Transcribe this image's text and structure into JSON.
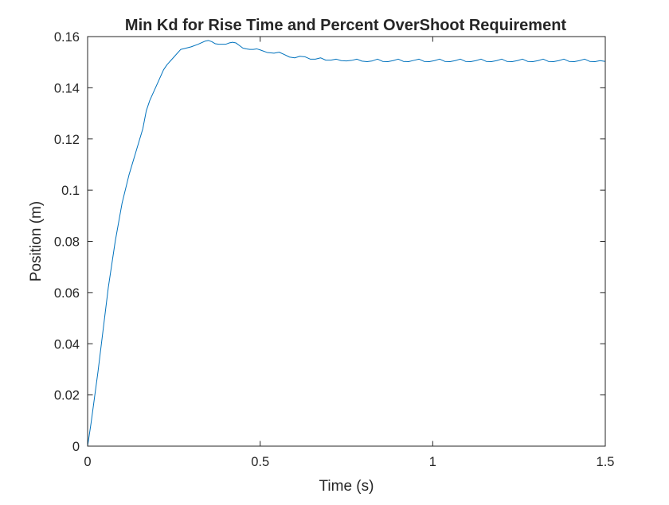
{
  "chart_data": {
    "type": "line",
    "title": "Min Kd for Rise Time and Percent OverShoot Requirement",
    "xlabel": "Time (s)",
    "ylabel": "Position (m)",
    "xlim": [
      0,
      1.5
    ],
    "ylim": [
      0,
      0.16
    ],
    "x_ticks": [
      0,
      0.5,
      1,
      1.5
    ],
    "x_tick_labels": [
      "0",
      "0.5",
      "1",
      "1.5"
    ],
    "y_ticks": [
      0,
      0.02,
      0.04,
      0.06,
      0.08,
      0.1,
      0.12,
      0.14,
      0.16
    ],
    "y_tick_labels": [
      "0",
      "0.02",
      "0.04",
      "0.06",
      "0.08",
      "0.1",
      "0.12",
      "0.14",
      "0.16"
    ],
    "grid": false,
    "line_color": "#0072BD",
    "series": [
      {
        "x": [
          0,
          0.01,
          0.02,
          0.03,
          0.04,
          0.05,
          0.06,
          0.08,
          0.1,
          0.12,
          0.14,
          0.16,
          0.17,
          0.18,
          0.2,
          0.22,
          0.23,
          0.25,
          0.27,
          0.28,
          0.3,
          0.32,
          0.34,
          0.35,
          0.36,
          0.37,
          0.38,
          0.39,
          0.4,
          0.41,
          0.42,
          0.43,
          0.44,
          0.45,
          0.46,
          0.47,
          0.48,
          0.49,
          0.5,
          0.52,
          0.54,
          0.555,
          0.57,
          0.585,
          0.6,
          0.615,
          0.63,
          0.645,
          0.66,
          0.675,
          0.69,
          0.705,
          0.72,
          0.735,
          0.75,
          0.765,
          0.78,
          0.795,
          0.81,
          0.825,
          0.84,
          0.855,
          0.87,
          0.885,
          0.9,
          0.915,
          0.93,
          0.945,
          0.96,
          0.975,
          0.99,
          1.005,
          1.02,
          1.035,
          1.05,
          1.065,
          1.08,
          1.095,
          1.11,
          1.125,
          1.14,
          1.155,
          1.17,
          1.185,
          1.2,
          1.215,
          1.23,
          1.245,
          1.26,
          1.275,
          1.29,
          1.305,
          1.32,
          1.335,
          1.35,
          1.365,
          1.38,
          1.395,
          1.41,
          1.425,
          1.44,
          1.455,
          1.47,
          1.485,
          1.5
        ],
        "y": [
          0,
          0.009,
          0.019,
          0.029,
          0.04,
          0.051,
          0.062,
          0.08,
          0.095,
          0.106,
          0.115,
          0.124,
          0.131,
          0.135,
          0.141,
          0.147,
          0.149,
          0.152,
          0.155,
          0.1553,
          0.156,
          0.157,
          0.1582,
          0.1585,
          0.158,
          0.1572,
          0.157,
          0.157,
          0.157,
          0.1575,
          0.1578,
          0.1575,
          0.1565,
          0.1555,
          0.1552,
          0.155,
          0.155,
          0.1552,
          0.1548,
          0.1538,
          0.1535,
          0.1539,
          0.153,
          0.152,
          0.1517,
          0.1523,
          0.1521,
          0.1512,
          0.1512,
          0.1517,
          0.1508,
          0.1508,
          0.1512,
          0.1506,
          0.1505,
          0.1507,
          0.1512,
          0.1504,
          0.1502,
          0.1505,
          0.1512,
          0.1503,
          0.1502,
          0.1506,
          0.1512,
          0.1503,
          0.1502,
          0.1507,
          0.1512,
          0.1503,
          0.1502,
          0.1506,
          0.1512,
          0.1503,
          0.1502,
          0.1506,
          0.1512,
          0.1503,
          0.1502,
          0.1506,
          0.1512,
          0.1503,
          0.1502,
          0.1506,
          0.1512,
          0.1503,
          0.1502,
          0.1506,
          0.1512,
          0.1503,
          0.1502,
          0.1506,
          0.1512,
          0.1503,
          0.1502,
          0.1506,
          0.1512,
          0.1503,
          0.1502,
          0.1506,
          0.1512,
          0.1503,
          0.1502,
          0.1506,
          0.1503
        ]
      }
    ]
  }
}
